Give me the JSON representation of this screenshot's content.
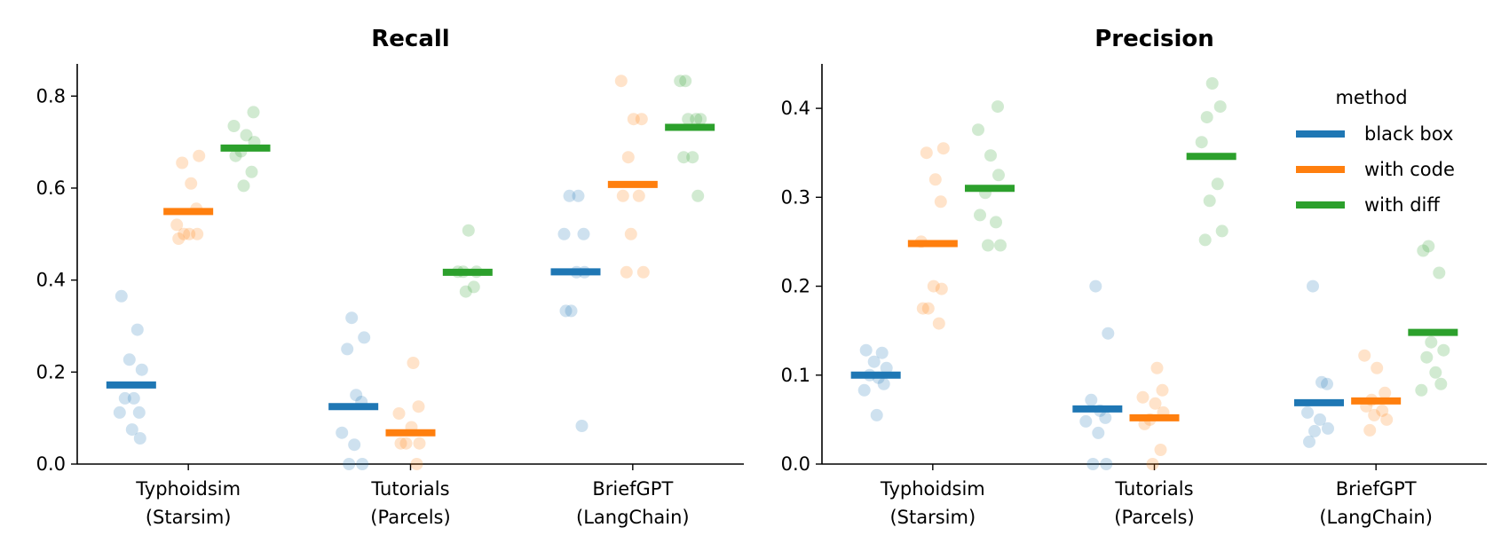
{
  "chart_data": [
    {
      "type": "scatter",
      "title": "Recall",
      "xlabel": "",
      "ylabel": "",
      "ylim": [
        0,
        0.87
      ],
      "yticks": [
        0.0,
        0.2,
        0.4,
        0.6,
        0.8
      ],
      "ytick_labels": [
        "0.0",
        "0.2",
        "0.4",
        "0.6",
        "0.8"
      ],
      "categories": [
        {
          "line1": "Typhoidsim",
          "line2": "(Starsim)"
        },
        {
          "line1": "Tutorials",
          "line2": "(Parcels)"
        },
        {
          "line1": "BriefGPT",
          "line2": "(LangChain)"
        }
      ],
      "series": [
        {
          "name": "black box",
          "color": "#1f77b4",
          "means": [
            0.172,
            0.125,
            0.418
          ],
          "points": [
            [
              0.365,
              0.292,
              0.227,
              0.205,
              0.143,
              0.143,
              0.112,
              0.112,
              0.075,
              0.056
            ],
            [
              0.318,
              0.275,
              0.25,
              0.15,
              0.135,
              0.068,
              0.042,
              0.0,
              0.0
            ],
            [
              0.583,
              0.583,
              0.5,
              0.5,
              0.417,
              0.417,
              0.333,
              0.333,
              0.083
            ]
          ]
        },
        {
          "name": "with code",
          "color": "#ff7f0e",
          "means": [
            0.549,
            0.068,
            0.608
          ],
          "points": [
            [
              0.67,
              0.655,
              0.61,
              0.555,
              0.52,
              0.5,
              0.5,
              0.5,
              0.49
            ],
            [
              0.22,
              0.125,
              0.11,
              0.08,
              0.045,
              0.045,
              0.045,
              0.0
            ],
            [
              0.833,
              0.75,
              0.75,
              0.667,
              0.583,
              0.583,
              0.5,
              0.417,
              0.417
            ]
          ]
        },
        {
          "name": "with diff",
          "color": "#2ca02c",
          "means": [
            0.687,
            0.417,
            0.732
          ],
          "points": [
            [
              0.765,
              0.735,
              0.715,
              0.7,
              0.68,
              0.67,
              0.635,
              0.605
            ],
            [
              0.508,
              0.418,
              0.418,
              0.418,
              0.385,
              0.375
            ],
            [
              0.833,
              0.833,
              0.75,
              0.75,
              0.75,
              0.667,
              0.667,
              0.583
            ]
          ]
        }
      ]
    },
    {
      "type": "scatter",
      "title": "Precision",
      "xlabel": "",
      "ylabel": "",
      "ylim": [
        0,
        0.45
      ],
      "yticks": [
        0.0,
        0.1,
        0.2,
        0.3,
        0.4
      ],
      "ytick_labels": [
        "0.0",
        "0.1",
        "0.2",
        "0.3",
        "0.4"
      ],
      "legend": {
        "title": "method",
        "position": "top-right"
      },
      "categories": [
        {
          "line1": "Typhoidsim",
          "line2": "(Starsim)"
        },
        {
          "line1": "Tutorials",
          "line2": "(Parcels)"
        },
        {
          "line1": "BriefGPT",
          "line2": "(LangChain)"
        }
      ],
      "series": [
        {
          "name": "black box",
          "color": "#1f77b4",
          "means": [
            0.1,
            0.062,
            0.069
          ],
          "points": [
            [
              0.128,
              0.125,
              0.115,
              0.108,
              0.1,
              0.097,
              0.09,
              0.083,
              0.055
            ],
            [
              0.2,
              0.147,
              0.072,
              0.06,
              0.052,
              0.048,
              0.035,
              0.0,
              0.0
            ],
            [
              0.2,
              0.092,
              0.09,
              0.058,
              0.05,
              0.04,
              0.037,
              0.025
            ]
          ]
        },
        {
          "name": "with code",
          "color": "#ff7f0e",
          "means": [
            0.248,
            0.052,
            0.071
          ],
          "points": [
            [
              0.355,
              0.35,
              0.32,
              0.295,
              0.25,
              0.2,
              0.197,
              0.175,
              0.175,
              0.158
            ],
            [
              0.108,
              0.083,
              0.075,
              0.068,
              0.058,
              0.05,
              0.045,
              0.016,
              0.0
            ],
            [
              0.122,
              0.108,
              0.08,
              0.072,
              0.065,
              0.06,
              0.055,
              0.05,
              0.038
            ]
          ]
        },
        {
          "name": "with diff",
          "color": "#2ca02c",
          "means": [
            0.31,
            0.346,
            0.148
          ],
          "points": [
            [
              0.402,
              0.376,
              0.347,
              0.325,
              0.305,
              0.28,
              0.272,
              0.246,
              0.246
            ],
            [
              0.428,
              0.402,
              0.39,
              0.362,
              0.315,
              0.296,
              0.262,
              0.252
            ],
            [
              0.245,
              0.24,
              0.215,
              0.137,
              0.128,
              0.12,
              0.103,
              0.09,
              0.083
            ]
          ]
        }
      ]
    }
  ]
}
